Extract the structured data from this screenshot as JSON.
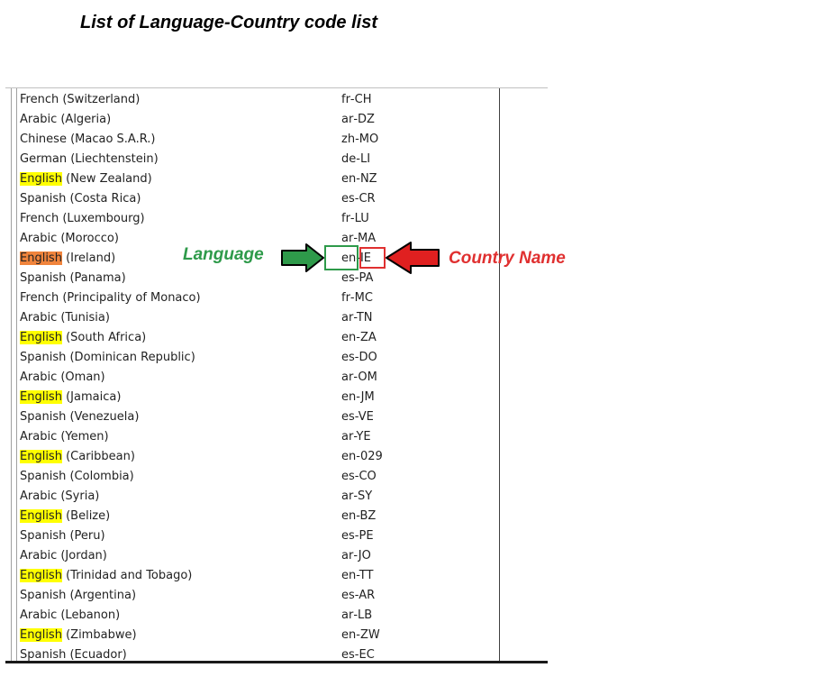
{
  "title": "List of Language-Country code list",
  "annotations": {
    "language_label": "Language",
    "country_label": "Country Name",
    "colors": {
      "language": "#2e9a4a",
      "country": "#e03030",
      "highlight": "#ffff00",
      "selected": "#f0843c"
    }
  },
  "rows": [
    {
      "language": "French",
      "country": "(Switzerland)",
      "lang_code": "fr",
      "country_code": "CH",
      "highlight": false,
      "selected": false
    },
    {
      "language": "Arabic",
      "country": "(Algeria)",
      "lang_code": "ar",
      "country_code": "DZ",
      "highlight": false,
      "selected": false
    },
    {
      "language": "Chinese",
      "country": "(Macao S.A.R.)",
      "lang_code": "zh",
      "country_code": "MO",
      "highlight": false,
      "selected": false
    },
    {
      "language": "German",
      "country": "(Liechtenstein)",
      "lang_code": "de",
      "country_code": "LI",
      "highlight": false,
      "selected": false
    },
    {
      "language": "English",
      "country": "(New Zealand)",
      "lang_code": "en",
      "country_code": "NZ",
      "highlight": true,
      "selected": false
    },
    {
      "language": "Spanish",
      "country": "(Costa Rica)",
      "lang_code": "es",
      "country_code": "CR",
      "highlight": false,
      "selected": false
    },
    {
      "language": "French",
      "country": "(Luxembourg)",
      "lang_code": "fr",
      "country_code": "LU",
      "highlight": false,
      "selected": false
    },
    {
      "language": "Arabic",
      "country": "(Morocco)",
      "lang_code": "ar",
      "country_code": "MA",
      "highlight": false,
      "selected": false
    },
    {
      "language": "English",
      "country": "(Ireland)",
      "lang_code": "en",
      "country_code": "IE",
      "highlight": true,
      "selected": true
    },
    {
      "language": "Spanish",
      "country": "(Panama)",
      "lang_code": "es",
      "country_code": "PA",
      "highlight": false,
      "selected": false
    },
    {
      "language": "French",
      "country": "(Principality of Monaco)",
      "lang_code": "fr",
      "country_code": "MC",
      "highlight": false,
      "selected": false
    },
    {
      "language": "Arabic",
      "country": "(Tunisia)",
      "lang_code": "ar",
      "country_code": "TN",
      "highlight": false,
      "selected": false
    },
    {
      "language": "English",
      "country": "(South Africa)",
      "lang_code": "en",
      "country_code": "ZA",
      "highlight": true,
      "selected": false
    },
    {
      "language": "Spanish",
      "country": "(Dominican Republic)",
      "lang_code": "es",
      "country_code": "DO",
      "highlight": false,
      "selected": false
    },
    {
      "language": "Arabic",
      "country": "(Oman)",
      "lang_code": "ar",
      "country_code": "OM",
      "highlight": false,
      "selected": false
    },
    {
      "language": "English",
      "country": "(Jamaica)",
      "lang_code": "en",
      "country_code": "JM",
      "highlight": true,
      "selected": false
    },
    {
      "language": "Spanish",
      "country": "(Venezuela)",
      "lang_code": "es",
      "country_code": "VE",
      "highlight": false,
      "selected": false
    },
    {
      "language": "Arabic",
      "country": "(Yemen)",
      "lang_code": "ar",
      "country_code": "YE",
      "highlight": false,
      "selected": false
    },
    {
      "language": "English",
      "country": "(Caribbean)",
      "lang_code": "en",
      "country_code": "029",
      "highlight": true,
      "selected": false
    },
    {
      "language": "Spanish",
      "country": "(Colombia)",
      "lang_code": "es",
      "country_code": "CO",
      "highlight": false,
      "selected": false
    },
    {
      "language": "Arabic",
      "country": "(Syria)",
      "lang_code": "ar",
      "country_code": "SY",
      "highlight": false,
      "selected": false
    },
    {
      "language": "English",
      "country": "(Belize)",
      "lang_code": "en",
      "country_code": "BZ",
      "highlight": true,
      "selected": false
    },
    {
      "language": "Spanish",
      "country": "(Peru)",
      "lang_code": "es",
      "country_code": "PE",
      "highlight": false,
      "selected": false
    },
    {
      "language": "Arabic",
      "country": "(Jordan)",
      "lang_code": "ar",
      "country_code": "JO",
      "highlight": false,
      "selected": false
    },
    {
      "language": "English",
      "country": "(Trinidad and Tobago)",
      "lang_code": "en",
      "country_code": "TT",
      "highlight": true,
      "selected": false
    },
    {
      "language": "Spanish",
      "country": "(Argentina)",
      "lang_code": "es",
      "country_code": "AR",
      "highlight": false,
      "selected": false
    },
    {
      "language": "Arabic",
      "country": "(Lebanon)",
      "lang_code": "ar",
      "country_code": "LB",
      "highlight": false,
      "selected": false
    },
    {
      "language": "English",
      "country": "(Zimbabwe)",
      "lang_code": "en",
      "country_code": "ZW",
      "highlight": true,
      "selected": false
    },
    {
      "language": "Spanish",
      "country": "(Ecuador)",
      "lang_code": "es",
      "country_code": "EC",
      "highlight": false,
      "selected": false
    }
  ]
}
